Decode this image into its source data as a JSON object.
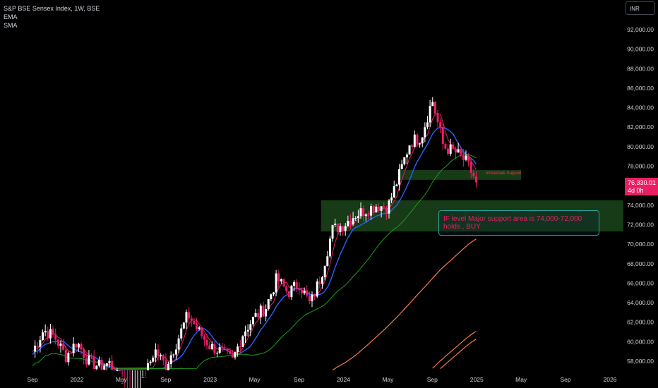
{
  "legend": {
    "symbol": "S&P BSE Sensex Index, 1W, BSE",
    "indicator1": "EMA",
    "indicator2": "SMA"
  },
  "currency_button": "INR",
  "last_price": {
    "value": "76,330.01",
    "countdown": "4d 0h"
  },
  "annotations": {
    "immediate_support": "Immediate Support",
    "major_support": "IF level Major support area is 74,000-72,000 holds , BUY"
  },
  "colors": {
    "up": "#ffffff",
    "down": "#e91e63",
    "ema_fast": "#e91e63",
    "ema_mid": "#2962ff",
    "sma": "#1b9e1b",
    "slow": "#f57c45",
    "zone": "#1f4d1f",
    "accent_box": "#26a69a"
  },
  "chart_data": {
    "type": "candlestick",
    "title": "S&P BSE Sensex Index, 1W, BSE",
    "y_ticks": [
      58000,
      60000,
      62000,
      64000,
      66000,
      68000,
      70000,
      72000,
      74000,
      76000,
      78000,
      80000,
      82000,
      84000,
      86000,
      88000,
      90000,
      92000
    ],
    "y_tick_labels": [
      "58,000.00",
      "60,000.00",
      "62,000.00",
      "64,000.00",
      "66,000.00",
      "68,000.00",
      "70,000.00",
      "72,000.00",
      "74,000.00",
      "76,000.00",
      "78,000.00",
      "80,000.00",
      "82,000.00",
      "84,000.00",
      "86,000.00",
      "88,000.00",
      "90,000.00",
      "92,000.00"
    ],
    "x_tick_labels": [
      "Sep",
      "2022",
      "May",
      "Sep",
      "2023",
      "May",
      "Sep",
      "2024",
      "May",
      "Sep",
      "2025",
      "May",
      "Sep",
      "2026"
    ],
    "x_tick_dates": [
      "2021-09",
      "2022-01",
      "2022-05",
      "2022-09",
      "2023-01",
      "2023-05",
      "2023-09",
      "2024-01",
      "2024-05",
      "2024-09",
      "2025-01",
      "2025-05",
      "2025-09",
      "2026-01"
    ],
    "ylim": [
      57000,
      93000
    ],
    "last_price": 76330.01,
    "zones": [
      {
        "name": "Immediate Support",
        "from": "2024-06",
        "to": "2025-05",
        "low": 76600,
        "high": 77600
      },
      {
        "name": "Major support",
        "from": "2023-11",
        "to": "2026-01",
        "low": 71300,
        "high": 74500
      }
    ],
    "series_close": [
      {
        "date": "2021-09",
        "value": 59000
      },
      {
        "date": "2021-10",
        "value": 61200
      },
      {
        "date": "2021-11",
        "value": 60500
      },
      {
        "date": "2021-12",
        "value": 58500
      },
      {
        "date": "2022-01",
        "value": 60000
      },
      {
        "date": "2022-02",
        "value": 58000
      },
      {
        "date": "2022-03",
        "value": 57500
      },
      {
        "date": "2022-04",
        "value": 57800
      },
      {
        "date": "2022-05",
        "value": 55500
      },
      {
        "date": "2022-06",
        "value": 53000
      },
      {
        "date": "2022-07",
        "value": 56000
      },
      {
        "date": "2022-08",
        "value": 59200
      },
      {
        "date": "2022-09",
        "value": 57500
      },
      {
        "date": "2022-10",
        "value": 60000
      },
      {
        "date": "2022-11",
        "value": 62800
      },
      {
        "date": "2022-12",
        "value": 61000
      },
      {
        "date": "2023-01",
        "value": 59500
      },
      {
        "date": "2023-02",
        "value": 59000
      },
      {
        "date": "2023-03",
        "value": 58000
      },
      {
        "date": "2023-04",
        "value": 61000
      },
      {
        "date": "2023-05",
        "value": 62500
      },
      {
        "date": "2023-06",
        "value": 63500
      },
      {
        "date": "2023-07",
        "value": 66500
      },
      {
        "date": "2023-08",
        "value": 65000
      },
      {
        "date": "2023-09",
        "value": 66000
      },
      {
        "date": "2023-10",
        "value": 63800
      },
      {
        "date": "2023-11",
        "value": 66800
      },
      {
        "date": "2023-12",
        "value": 71500
      },
      {
        "date": "2024-01",
        "value": 72000
      },
      {
        "date": "2024-02",
        "value": 73000
      },
      {
        "date": "2024-03",
        "value": 73500
      },
      {
        "date": "2024-04",
        "value": 74000
      },
      {
        "date": "2024-05",
        "value": 73800
      },
      {
        "date": "2024-06",
        "value": 77000
      },
      {
        "date": "2024-07",
        "value": 80500
      },
      {
        "date": "2024-08",
        "value": 81000
      },
      {
        "date": "2024-09",
        "value": 84800
      },
      {
        "date": "2024-10",
        "value": 80000
      },
      {
        "date": "2024-11",
        "value": 79500
      },
      {
        "date": "2024-12",
        "value": 78500
      },
      {
        "date": "2025-01",
        "value": 76330
      }
    ]
  }
}
